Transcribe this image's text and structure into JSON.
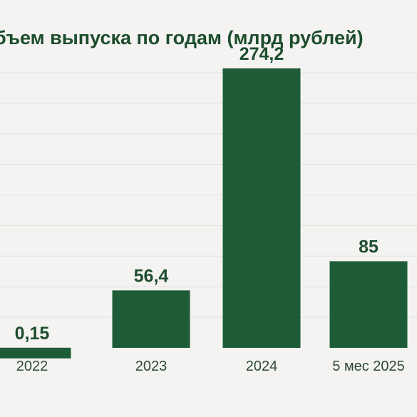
{
  "chart_data": {
    "type": "bar",
    "title": "бъем выпуска по годам (млрд рублей)",
    "xlabel": "",
    "ylabel": "",
    "categories": [
      "2022",
      "2023",
      "2024",
      "5 мес 2025"
    ],
    "values": [
      0.15,
      56.4,
      274.2,
      85
    ],
    "value_labels": [
      "0,15",
      "56,4",
      "274,2",
      "85"
    ],
    "ylim": [
      0,
      300
    ],
    "grid": true,
    "legend": "none"
  },
  "colors": {
    "bar": "#1e5c37",
    "text": "#1d4d2d",
    "axis_text": "#2d4a34",
    "grid": "#e2e2e0",
    "background": "#f4f3f1"
  }
}
